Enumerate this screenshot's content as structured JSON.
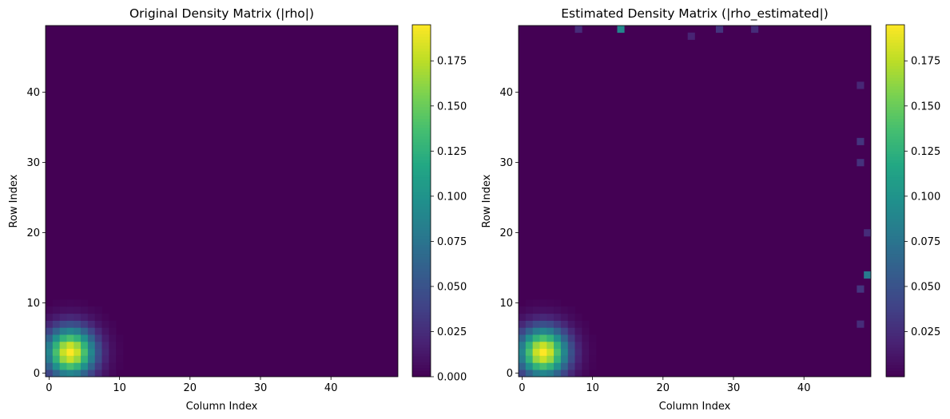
{
  "chart_data": [
    {
      "type": "heatmap",
      "title": "Original Density Matrix (|rho|)",
      "xlabel": "Column Index",
      "ylabel": "Row Index",
      "x_ticks": [
        0,
        10,
        20,
        30,
        40
      ],
      "y_ticks": [
        0,
        10,
        20,
        30,
        40
      ],
      "xlim": [
        -0.5,
        49.5
      ],
      "ylim": [
        -0.5,
        49.5
      ],
      "matrix_size": 50,
      "colormap": "viridis",
      "colorbar": {
        "vmin": 0.0,
        "vmax": 0.195,
        "ticks": [
          0.0,
          0.025,
          0.05,
          0.075,
          0.1,
          0.125,
          0.15,
          0.175
        ],
        "tick_labels": [
          "0.000",
          "0.025",
          "0.050",
          "0.075",
          "0.100",
          "0.125",
          "0.150",
          "0.175"
        ]
      },
      "peak": {
        "row": 3,
        "col": 3,
        "value": 0.195,
        "spread": 2.4
      },
      "edge_noise": []
    },
    {
      "type": "heatmap",
      "title": "Estimated Density Matrix (|rho_estimated|)",
      "xlabel": "Column Index",
      "ylabel": "Row Index",
      "x_ticks": [
        0,
        10,
        20,
        30,
        40
      ],
      "y_ticks": [
        0,
        10,
        20,
        30,
        40
      ],
      "xlim": [
        -0.5,
        49.5
      ],
      "ylim": [
        -0.5,
        49.5
      ],
      "matrix_size": 50,
      "colormap": "viridis",
      "colorbar": {
        "vmin": 0.0,
        "vmax": 0.195,
        "ticks": [
          0.025,
          0.05,
          0.075,
          0.1,
          0.125,
          0.15,
          0.175
        ],
        "tick_labels": [
          "0.025",
          "0.050",
          "0.075",
          "0.100",
          "0.125",
          "0.150",
          "0.175"
        ]
      },
      "peak": {
        "row": 3,
        "col": 3,
        "value": 0.195,
        "spread": 2.4
      },
      "edge_noise": [
        {
          "row": 49,
          "col": 14,
          "value": 0.09
        },
        {
          "row": 14,
          "col": 49,
          "value": 0.08
        },
        {
          "row": 49,
          "col": 8,
          "value": 0.025
        },
        {
          "row": 49,
          "col": 28,
          "value": 0.03
        },
        {
          "row": 49,
          "col": 33,
          "value": 0.025
        },
        {
          "row": 48,
          "col": 24,
          "value": 0.02
        },
        {
          "row": 33,
          "col": 48,
          "value": 0.03
        },
        {
          "row": 30,
          "col": 48,
          "value": 0.028
        },
        {
          "row": 12,
          "col": 48,
          "value": 0.03
        },
        {
          "row": 7,
          "col": 48,
          "value": 0.025
        },
        {
          "row": 41,
          "col": 48,
          "value": 0.022
        },
        {
          "row": 20,
          "col": 49,
          "value": 0.025
        }
      ]
    }
  ]
}
